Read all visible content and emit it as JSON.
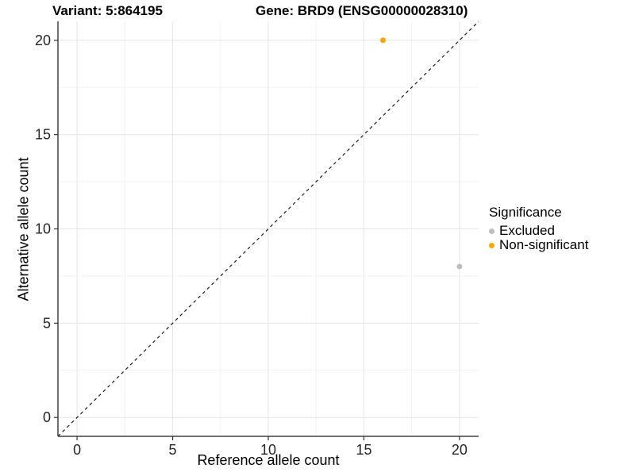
{
  "titles": {
    "variant": "Variant: 5:864195",
    "gene": "Gene: BRD9 (ENSG00000028310)"
  },
  "chart_data": {
    "type": "scatter",
    "xlabel": "Reference allele count",
    "ylabel": "Alternative allele count",
    "xlim": [
      -1,
      21
    ],
    "ylim": [
      -1,
      21
    ],
    "x_ticks": [
      0,
      5,
      10,
      15,
      20
    ],
    "y_ticks": [
      0,
      5,
      10,
      15,
      20
    ],
    "x_minor_ticks": [
      2.5,
      7.5,
      12.5,
      17.5
    ],
    "y_minor_ticks": [
      2.5,
      7.5,
      12.5,
      17.5
    ],
    "grid": "major+minor",
    "identity_line": {
      "style": "dashed",
      "color": "#1a1a1a",
      "from": [
        -1,
        -1
      ],
      "to": [
        21,
        21
      ]
    },
    "series": [
      {
        "name": "Excluded",
        "color": "#BEBEBE",
        "points": [
          [
            20,
            8
          ]
        ]
      },
      {
        "name": "Non-significant",
        "color": "#FFA500",
        "points": [
          [
            16,
            20
          ]
        ]
      }
    ],
    "legend": {
      "title": "Significance",
      "position": "right"
    },
    "colors": {
      "grid_major": "#e6e6e6",
      "grid_minor": "#f2f2f2",
      "axis_line": "#404040",
      "tick_mark": "#333333",
      "tick_label": "#262626"
    }
  }
}
